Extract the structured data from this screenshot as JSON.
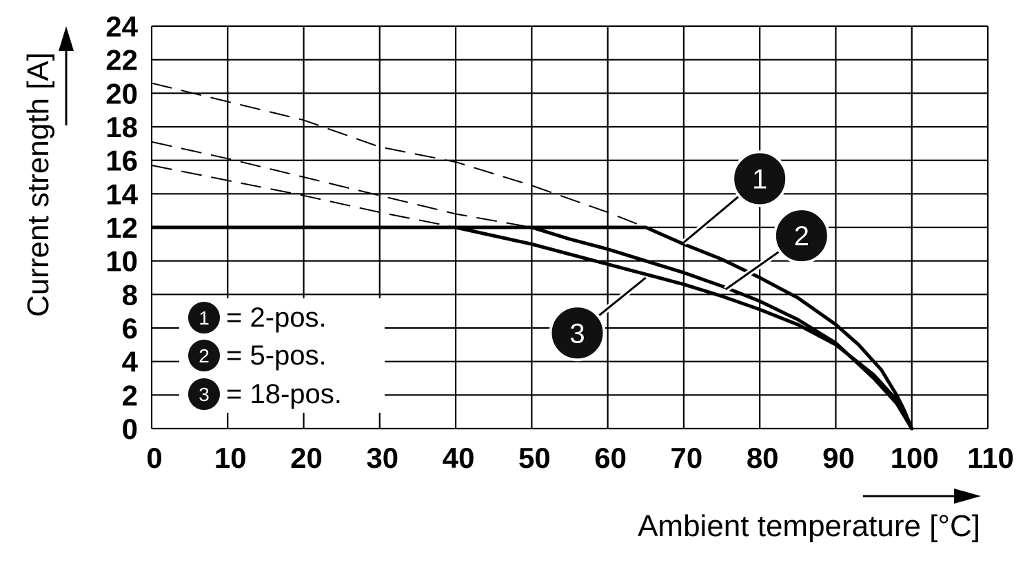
{
  "chart_data": {
    "type": "line",
    "xlabel": "Ambient temperature [°C]",
    "ylabel": "Current strength [A]",
    "xlim": [
      0,
      110
    ],
    "ylim": [
      0,
      24
    ],
    "x_ticks": [
      "0",
      "10",
      "20",
      "30",
      "40",
      "50",
      "60",
      "70",
      "80",
      "90",
      "100",
      "110"
    ],
    "y_ticks": [
      "0",
      "2",
      "4",
      "6",
      "8",
      "10",
      "12",
      "14",
      "16",
      "18",
      "20",
      "22",
      "24"
    ],
    "grid": true,
    "legend_placement": "bottom-left",
    "current_limit": 12,
    "legend": [
      {
        "marker": "1",
        "text": "= 2-pos."
      },
      {
        "marker": "2",
        "text": "= 5-pos."
      },
      {
        "marker": "3",
        "text": "= 18-pos."
      }
    ],
    "series": [
      {
        "name": "2-pos.",
        "marker": "1",
        "dashed_x": [
          0,
          10,
          20,
          30,
          40,
          50,
          60,
          65
        ],
        "dashed_y": [
          20.6,
          19.5,
          18.4,
          16.8,
          15.9,
          14.5,
          12.9,
          12
        ],
        "solid_x": [
          65,
          70,
          75,
          80,
          85,
          90,
          93,
          96,
          98,
          99,
          100
        ],
        "solid_y": [
          12,
          11.0,
          10.1,
          9.0,
          7.8,
          6.2,
          5.0,
          3.5,
          2.0,
          1.1,
          0
        ]
      },
      {
        "name": "5-pos.",
        "marker": "2",
        "dashed_x": [
          0,
          10,
          20,
          30,
          40,
          50
        ],
        "dashed_y": [
          17.1,
          16.1,
          15.0,
          13.9,
          12.8,
          12
        ],
        "solid_x": [
          50,
          55,
          60,
          65,
          70,
          75,
          80,
          85,
          90,
          95,
          98,
          100
        ],
        "solid_y": [
          12,
          11.3,
          10.7,
          10.0,
          9.3,
          8.5,
          7.6,
          6.5,
          5.1,
          3.0,
          1.5,
          0
        ]
      },
      {
        "name": "18-pos.",
        "marker": "3",
        "dashed_x": [
          0,
          10,
          20,
          30,
          40
        ],
        "dashed_y": [
          15.7,
          14.8,
          13.9,
          12.9,
          12
        ],
        "solid_x": [
          40,
          45,
          50,
          55,
          60,
          65,
          70,
          75,
          80,
          85,
          90,
          95,
          98,
          100
        ],
        "solid_y": [
          12,
          11.5,
          11.0,
          10.4,
          9.8,
          9.2,
          8.6,
          7.9,
          7.1,
          6.2,
          5.0,
          3.2,
          1.7,
          0
        ]
      }
    ],
    "callouts": [
      {
        "marker": "1",
        "badge": [
          80,
          14.9
        ],
        "leader_to": [
          70,
          11.1
        ]
      },
      {
        "marker": "2",
        "badge": [
          85.5,
          11.5
        ],
        "leader_to": [
          75.5,
          8.3
        ]
      },
      {
        "marker": "3",
        "badge": [
          56,
          5.7
        ],
        "leader_to": [
          65,
          9.0
        ]
      }
    ]
  }
}
